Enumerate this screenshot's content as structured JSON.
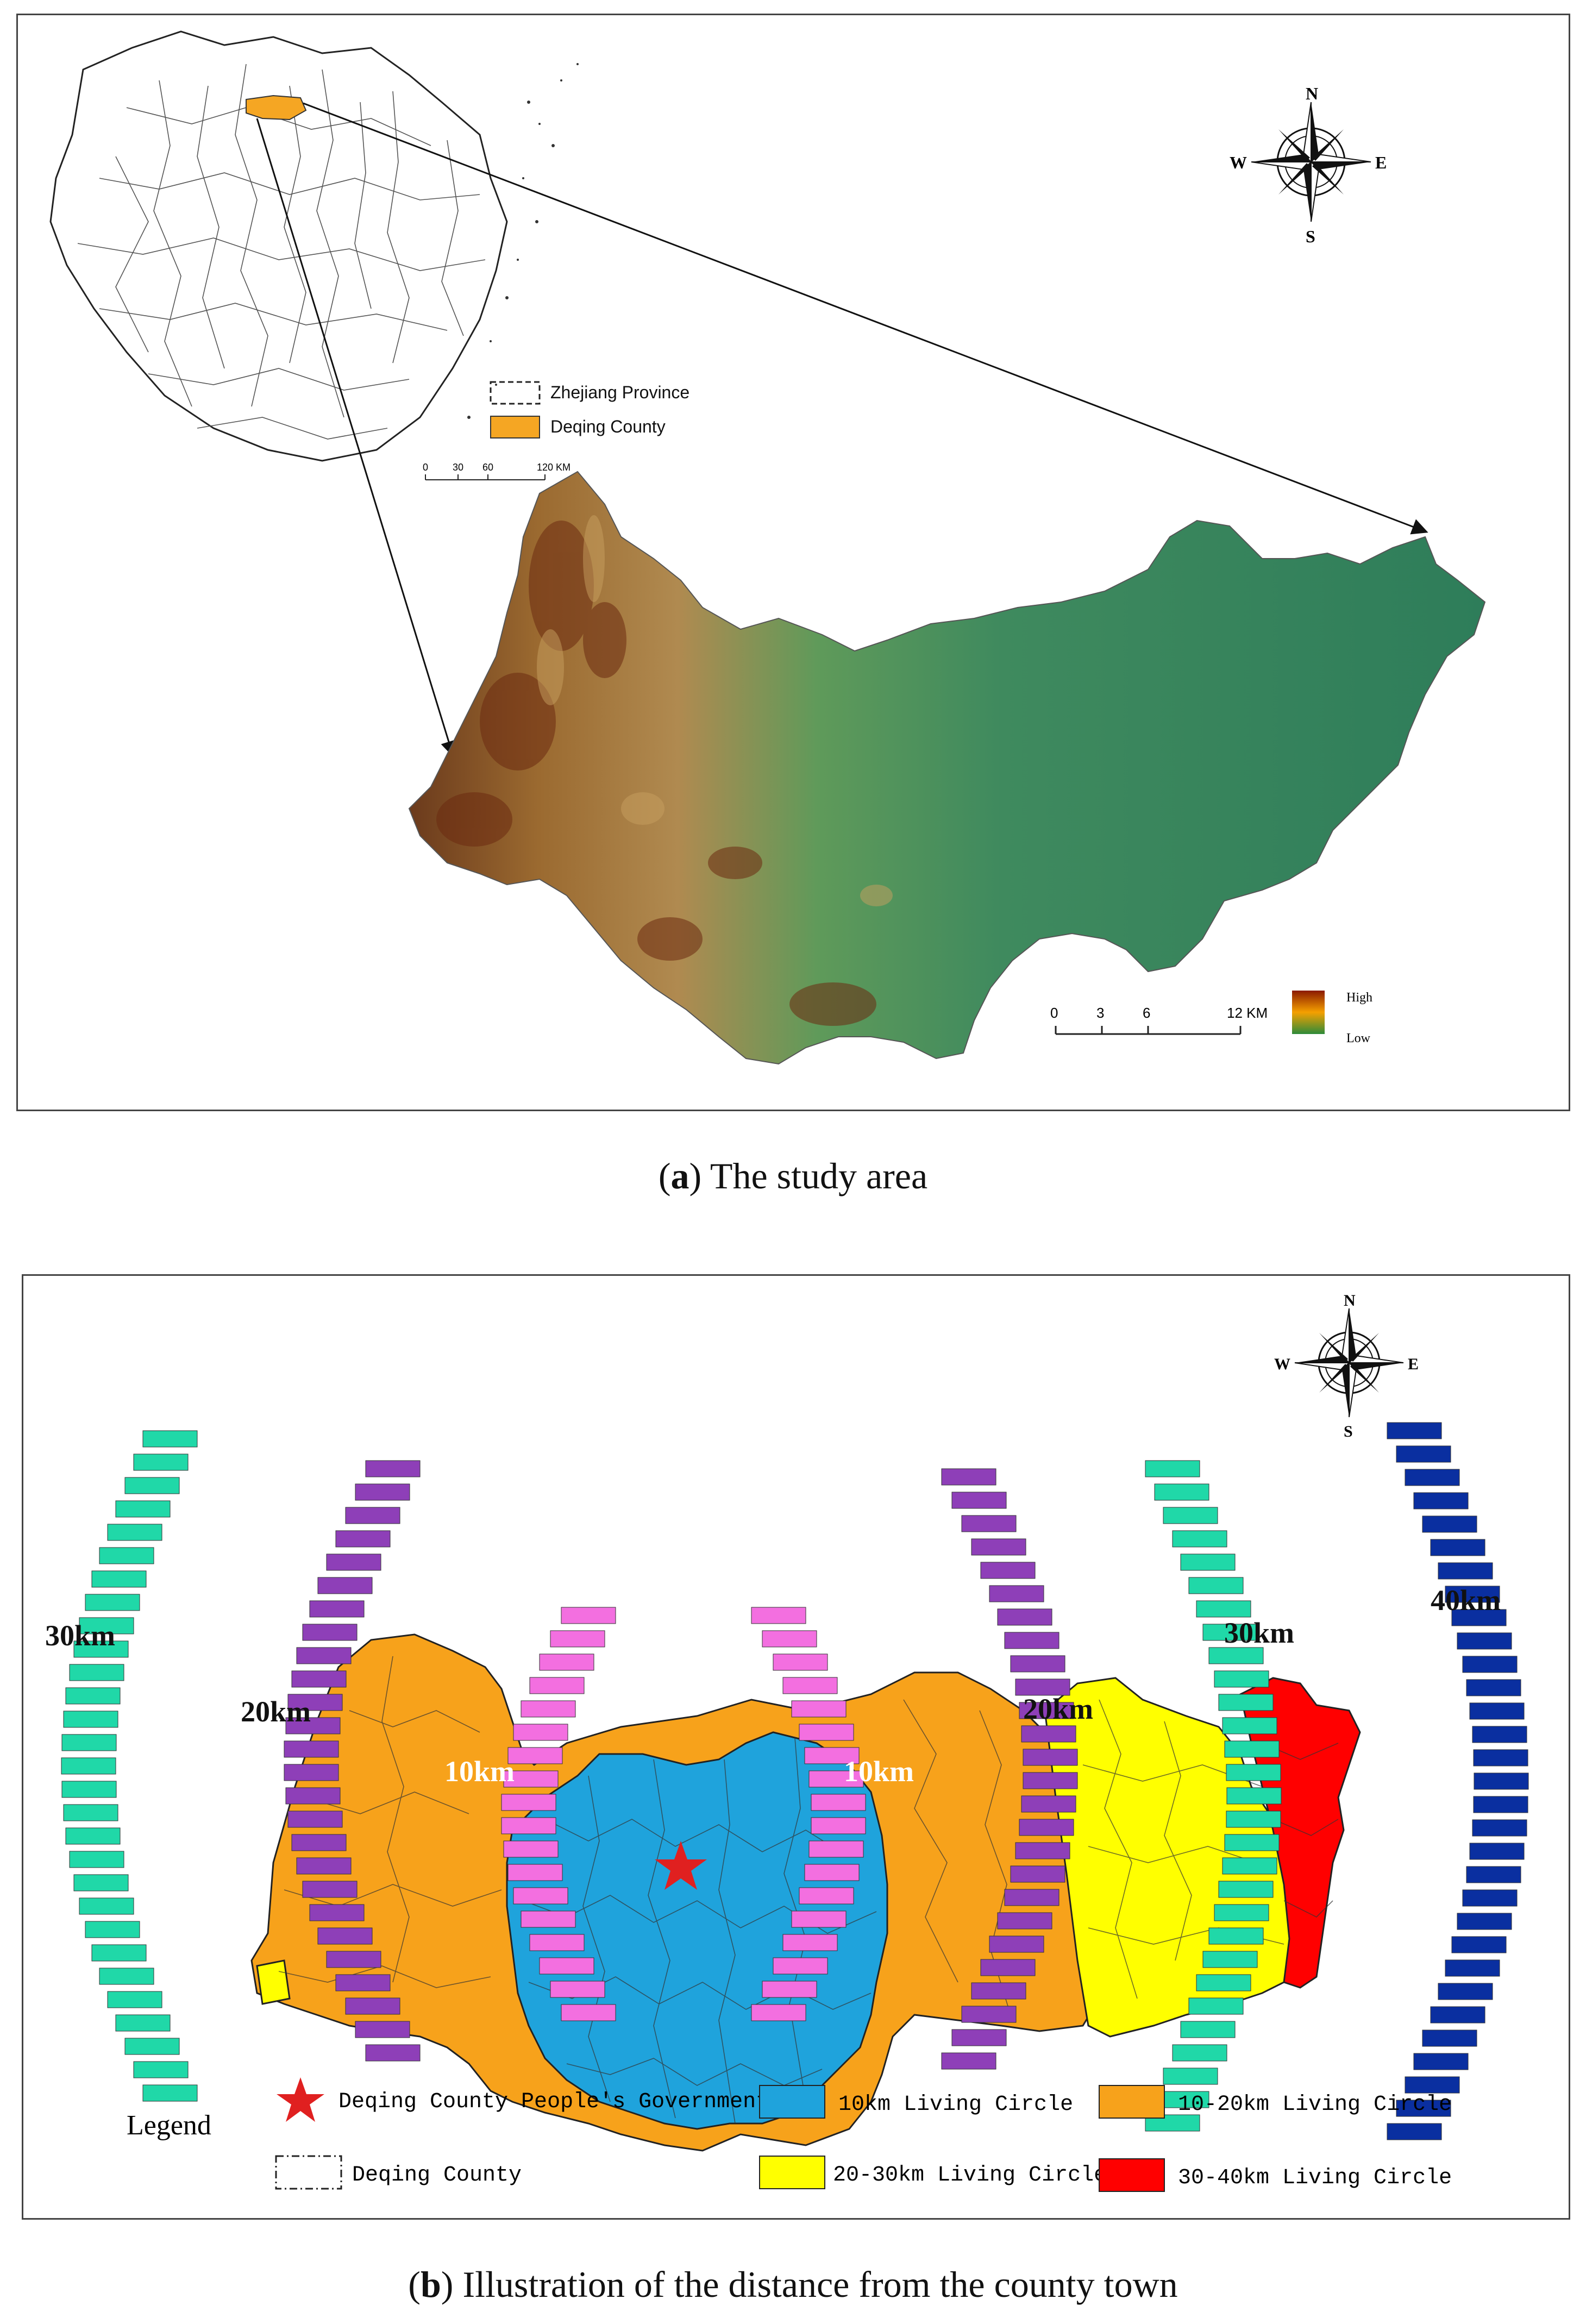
{
  "panel_a": {
    "caption_letter": "a",
    "caption_text": "The study area",
    "compass": {
      "n": "N",
      "s": "S",
      "e": "E",
      "w": "W"
    },
    "legend": [
      {
        "label": "Zhejiang Province",
        "symbol": "dashed-box"
      },
      {
        "label": "Deqing County",
        "symbol": "orange-fill",
        "color": "#f5a623"
      }
    ],
    "inset_scale": {
      "ticks": [
        "0",
        "30",
        "60",
        "120 KM"
      ]
    },
    "dem_scale": {
      "ticks": [
        "0",
        "3",
        "6",
        "12 KM"
      ]
    },
    "elevation_legend": {
      "high": "High",
      "low": "Low",
      "colors": [
        "#8b1a00",
        "#f5a000",
        "#2e8b3a"
      ]
    }
  },
  "panel_b": {
    "caption_letter": "b",
    "caption_text": "Illustration of the distance from the county town",
    "compass": {
      "n": "N",
      "s": "S",
      "e": "E",
      "w": "W"
    },
    "ring_labels": {
      "left_30": "30km",
      "left_20": "20km",
      "left_10": "10km",
      "right_10": "10km",
      "right_20": "20km",
      "right_30": "30km",
      "right_40": "40km"
    },
    "legend_title": "Legend",
    "legend": [
      {
        "label": "Deqing County People's Government",
        "symbol": "red-star",
        "color": "#e02020"
      },
      {
        "label": "10km Living Circle",
        "color": "#1fa3dc"
      },
      {
        "label": "10-20km Living Circle",
        "color": "#f7a21b"
      },
      {
        "label": "Deqing County",
        "symbol": "dashed-box"
      },
      {
        "label": "20-30km Living Circle",
        "color": "#ffff00"
      },
      {
        "label": "30-40km Living Circle",
        "color": "#ff0000"
      }
    ],
    "dash_colors": {
      "ring10": "#f36fe0",
      "ring20": "#8e3fb8",
      "ring30": "#20d8a8",
      "ring40": "#0a2fa0"
    }
  }
}
